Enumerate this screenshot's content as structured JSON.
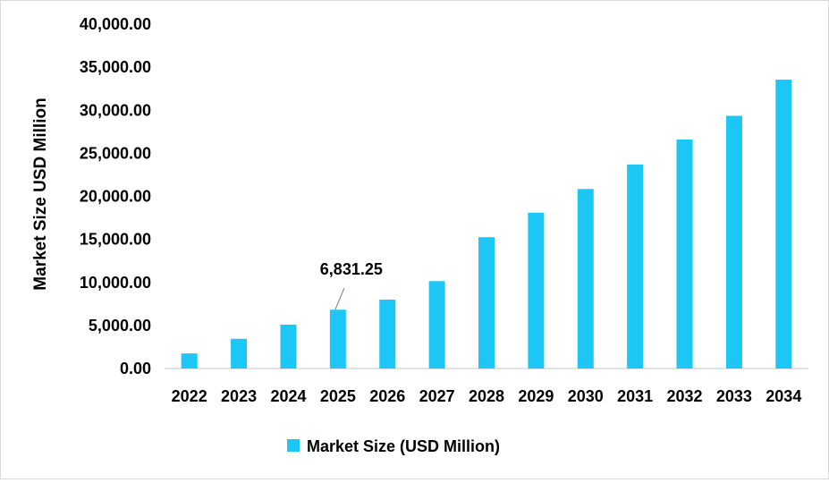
{
  "chart_data": {
    "type": "bar",
    "title": "",
    "xlabel": "",
    "ylabel": "Market Size USD Million",
    "ylim": [
      0,
      40000
    ],
    "y_ticks": [
      0,
      5000,
      10000,
      15000,
      20000,
      25000,
      30000,
      35000,
      40000
    ],
    "y_tick_labels": [
      "0.00",
      "5,000.00",
      "10,000.00",
      "15,000.00",
      "20,000.00",
      "25,000.00",
      "30,000.00",
      "35,000.00",
      "40,000.00"
    ],
    "grid": false,
    "legend_position": "bottom",
    "categories": [
      "2022",
      "2023",
      "2024",
      "2025",
      "2026",
      "2027",
      "2028",
      "2029",
      "2030",
      "2031",
      "2032",
      "2033",
      "2034"
    ],
    "series": [
      {
        "name": "Market Size (USD Million)",
        "color": "#1cc6f5",
        "values": [
          1750,
          3450,
          5100,
          6831.25,
          8000,
          10150,
          15250,
          18100,
          20850,
          23700,
          26600,
          29350,
          33550
        ]
      }
    ],
    "annotations": [
      {
        "category": "2025",
        "text": "6,831.25"
      }
    ]
  }
}
